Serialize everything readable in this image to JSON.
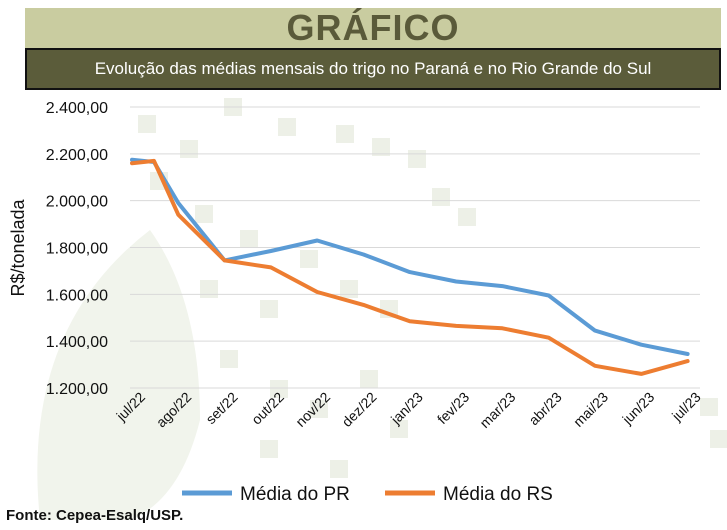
{
  "header": {
    "title": "GRÁFICO",
    "subtitle": "Evolução das médias mensais do trigo no Paraná e no Rio Grande do Sul"
  },
  "source": "Fonte: Cepea-Esalq/USP.",
  "colors": {
    "header_band": "#c9cca0",
    "subtitle_bg": "#5b5c3a",
    "series_pr": "#5b9bd5",
    "series_rs": "#ed7d31"
  },
  "chart_data": {
    "type": "line",
    "title": "",
    "xlabel": "",
    "ylabel": "R$/tonelada",
    "ylim": [
      1200,
      2400
    ],
    "yticks": [
      1200,
      1400,
      1600,
      1800,
      2000,
      2200,
      2400
    ],
    "ytick_labels": [
      "1.200,00",
      "1.400,00",
      "1.600,00",
      "1.800,00",
      "2.000,00",
      "2.200,00",
      "2.400,00"
    ],
    "categories": [
      "jul/22",
      "ago/22",
      "set/22",
      "out/22",
      "nov/22",
      "dez/22",
      "jan/23",
      "fev/23",
      "mar/23",
      "abr/23",
      "mai/23",
      "jun/23",
      "jul/23"
    ],
    "grid": true,
    "legend_position": "bottom",
    "series": [
      {
        "name": "Média do PR",
        "color": "#5b9bd5",
        "points": [
          [
            "jul/22",
            2175
          ],
          [
            "jul/22+",
            2165
          ],
          [
            "ago/22",
            1990
          ],
          [
            "set/22",
            1745
          ],
          [
            "out/22",
            1785
          ],
          [
            "nov/22",
            1830
          ],
          [
            "dez/22",
            1770
          ],
          [
            "jan/23",
            1695
          ],
          [
            "fev/23",
            1655
          ],
          [
            "mar/23",
            1635
          ],
          [
            "abr/23",
            1595
          ],
          [
            "mai/23",
            1445
          ],
          [
            "jun/23",
            1385
          ],
          [
            "jul/23",
            1345
          ]
        ]
      },
      {
        "name": "Média do RS",
        "color": "#ed7d31",
        "points": [
          [
            "jul/22",
            2160
          ],
          [
            "jul/22+",
            2170
          ],
          [
            "ago/22",
            1940
          ],
          [
            "set/22",
            1745
          ],
          [
            "out/22",
            1715
          ],
          [
            "nov/22",
            1610
          ],
          [
            "dez/22",
            1555
          ],
          [
            "jan/23",
            1485
          ],
          [
            "fev/23",
            1465
          ],
          [
            "mar/23",
            1455
          ],
          [
            "abr/23",
            1415
          ],
          [
            "mai/23",
            1295
          ],
          [
            "jun/23",
            1260
          ],
          [
            "jul/23",
            1315
          ]
        ]
      }
    ]
  }
}
